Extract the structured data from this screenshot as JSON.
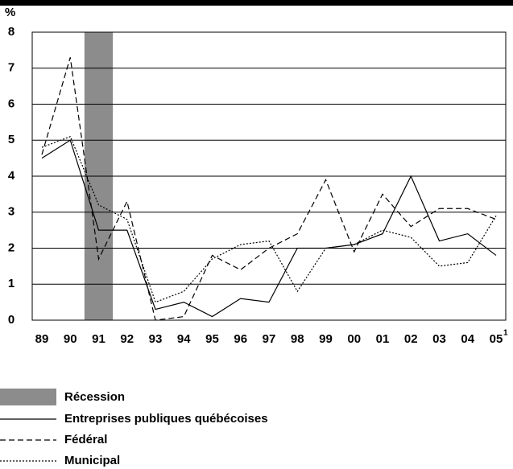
{
  "chart_data": {
    "type": "line",
    "y_label": "%",
    "categories": [
      "89",
      "90",
      "91",
      "92",
      "93",
      "94",
      "95",
      "96",
      "97",
      "98",
      "99",
      "00",
      "01",
      "02",
      "03",
      "04",
      "05"
    ],
    "category_note": {
      "category": "05",
      "marker": "1"
    },
    "recession": {
      "name": "Récession",
      "category": "91",
      "color": "#8c8c8c"
    },
    "series": [
      {
        "name": "Entreprises publiques québécoises",
        "color": "#000000",
        "style": "solid",
        "values": [
          4.5,
          5.0,
          2.5,
          2.5,
          0.3,
          0.5,
          0.1,
          0.6,
          0.5,
          2.0,
          2.0,
          2.1,
          2.4,
          4.0,
          2.2,
          2.4,
          1.8
        ]
      },
      {
        "name": "Fédéral",
        "color": "#000000",
        "style": "dashed",
        "values": [
          4.6,
          7.3,
          1.7,
          3.3,
          0.0,
          0.1,
          1.8,
          1.4,
          2.0,
          2.4,
          3.9,
          1.9,
          3.5,
          2.6,
          3.1,
          3.1,
          2.8
        ]
      },
      {
        "name": "Municipal",
        "color": "#000000",
        "style": "dotted",
        "values": [
          4.8,
          5.1,
          3.2,
          2.8,
          0.5,
          0.8,
          1.7,
          2.1,
          2.2,
          0.8,
          2.0,
          2.1,
          2.5,
          2.3,
          1.5,
          1.6,
          2.9
        ]
      }
    ],
    "ylim": [
      0,
      8
    ],
    "yticks": [
      0,
      1,
      2,
      3,
      4,
      5,
      6,
      7,
      8
    ],
    "grid": true
  }
}
